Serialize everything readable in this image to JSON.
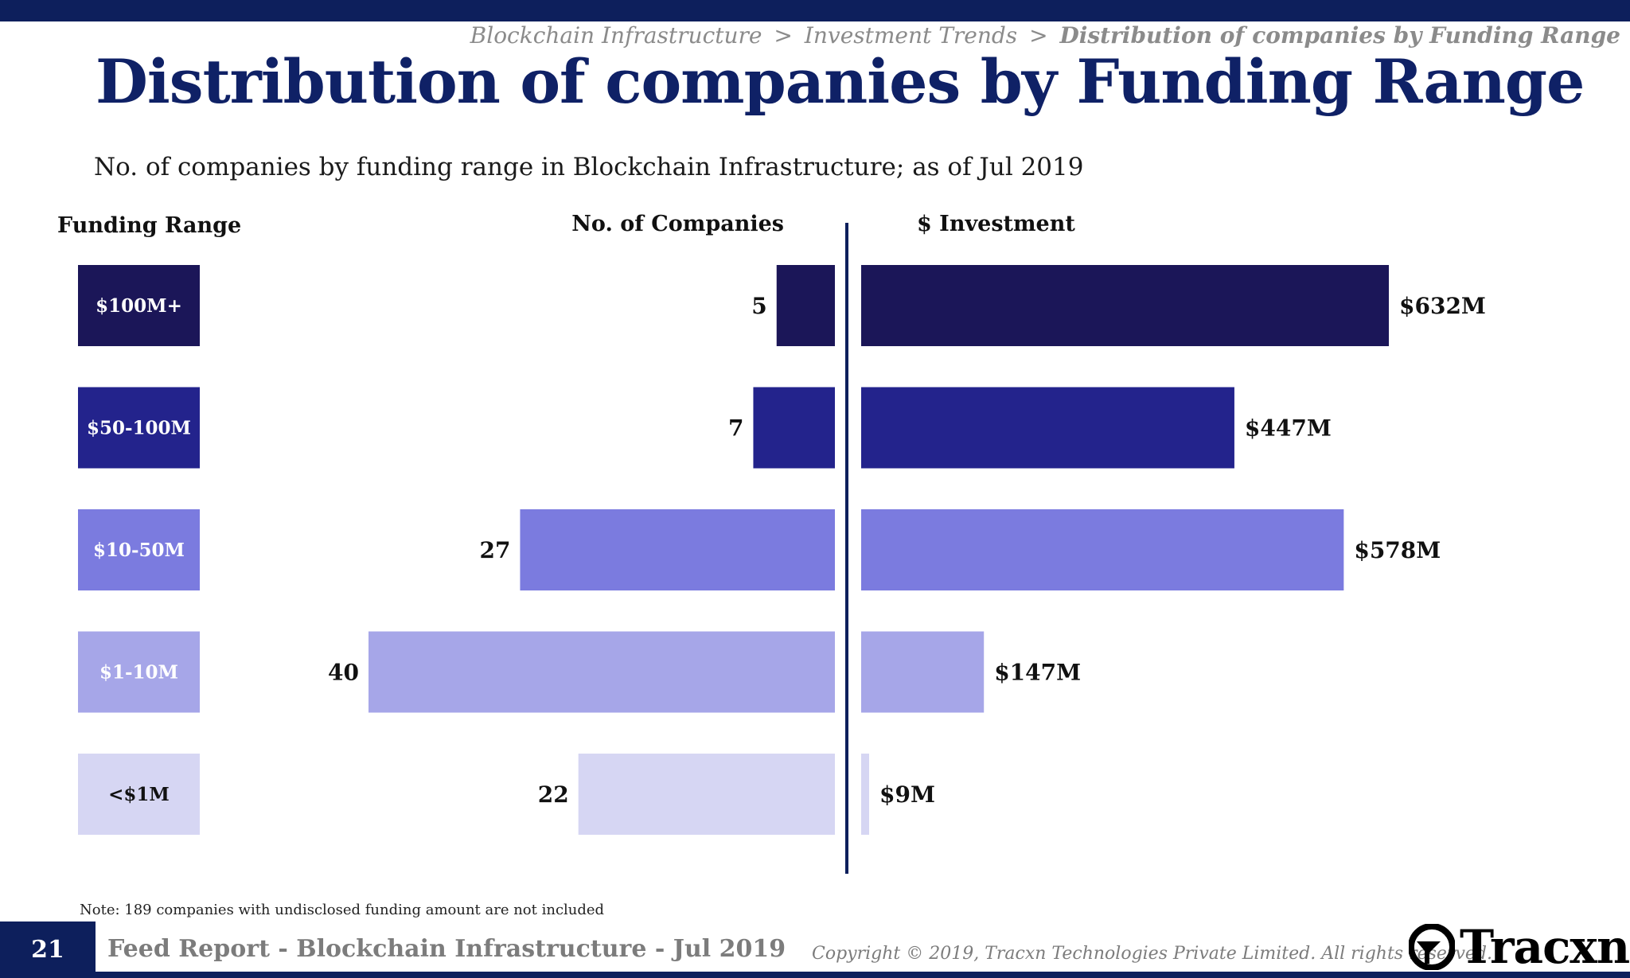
{
  "breadcrumb": {
    "part1": "Blockchain Infrastructure",
    "sep1": ">",
    "part2": "Investment Trends",
    "sep2": ">",
    "current": "Distribution of companies by Funding Range"
  },
  "title": "Distribution of companies by Funding Range",
  "subtitle": "No. of companies by funding range in Blockchain Infrastructure; as of Jul 2019",
  "chart_data": {
    "type": "bar",
    "column_headers": {
      "range": "Funding Range",
      "companies": "No. of Companies",
      "investment": "$ Investment"
    },
    "categories": [
      "$100M+",
      "$50-100M",
      "$10-50M",
      "$1-10M",
      "<$1M"
    ],
    "series": [
      {
        "name": "No. of Companies",
        "values": [
          5,
          7,
          27,
          40,
          22
        ],
        "labels": [
          "5",
          "7",
          "27",
          "40",
          "22"
        ]
      },
      {
        "name": "$ Investment",
        "values": [
          632,
          447,
          578,
          147,
          9
        ],
        "labels": [
          "$632M",
          "$447M",
          "$578M",
          "$147M",
          "$9M"
        ]
      }
    ],
    "colors": [
      "#1b1658",
      "#23238c",
      "#7b7bdf",
      "#a6a6e8",
      "#d6d6f3"
    ],
    "label_text_colors": [
      "#ffffff",
      "#ffffff",
      "#ffffff",
      "#ffffff",
      "#111111"
    ],
    "divider_color": "#0d1f5c"
  },
  "note": "Note: 189 companies with undisclosed funding amount are not included",
  "footer": {
    "page_number": "21",
    "report_title": "Feed Report - Blockchain Infrastructure - Jul 2019",
    "copyright": "Copyright © 2019, Tracxn Technologies Private Limited. All rights reserved.",
    "brand": "Tracxn"
  }
}
